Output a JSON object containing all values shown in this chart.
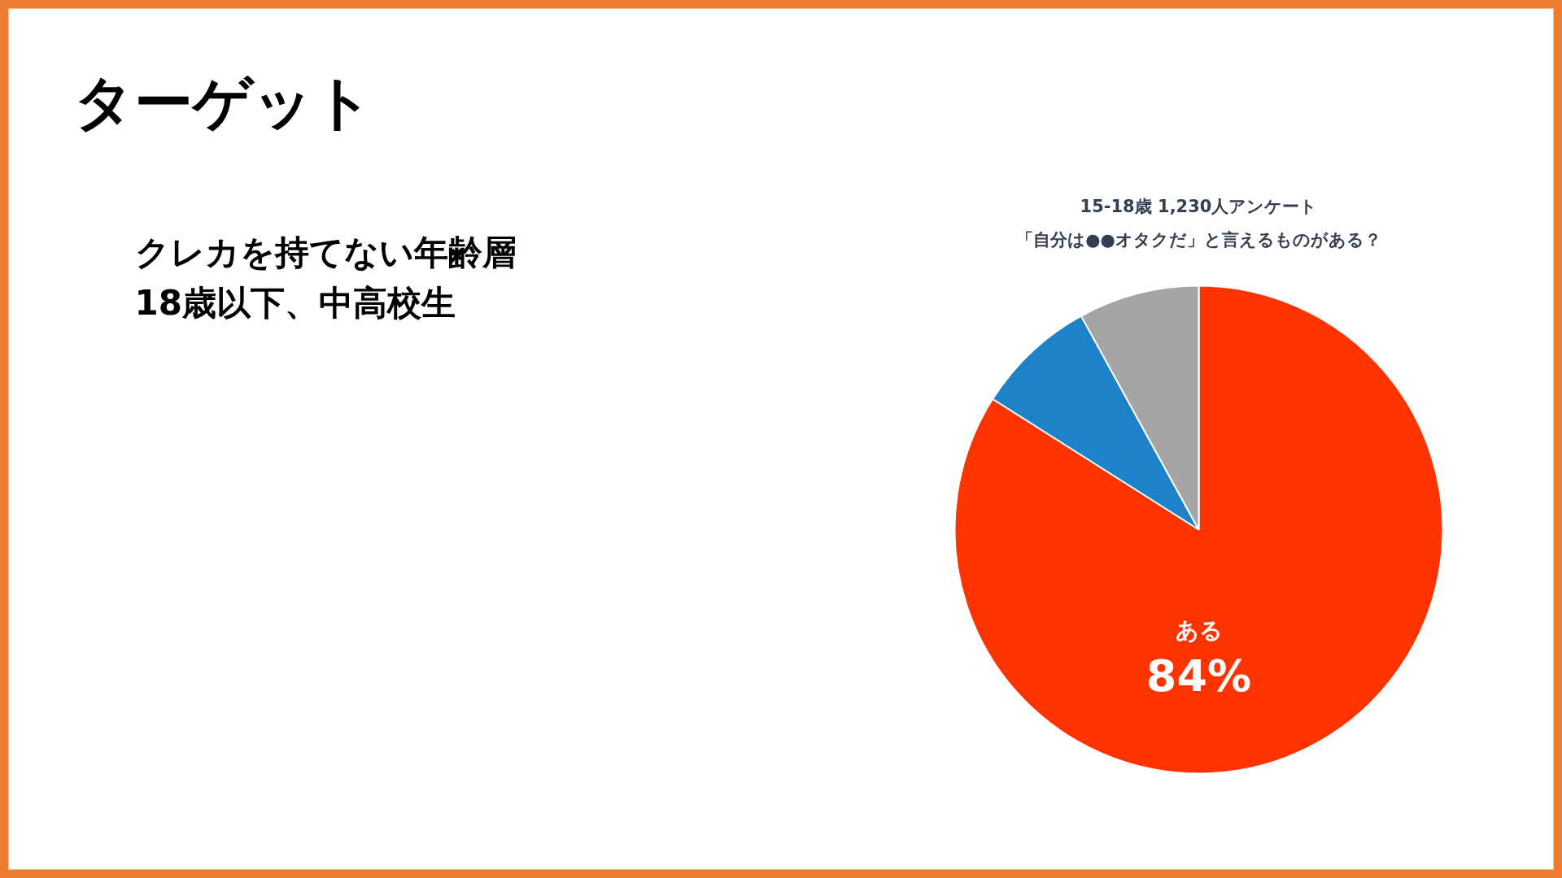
{
  "chart_data": {
    "type": "pie",
    "title": "15-18歳 1,230人アンケート",
    "subtitle": "「自分は●●オタクだ」と言えるものがある？",
    "categories": [
      "ある",
      null,
      null
    ],
    "values": [
      84,
      8,
      8
    ],
    "colors": [
      "#ff3300",
      "#1e82c8",
      "#a5a5a5"
    ],
    "value_labels": [
      "84%",
      null,
      null
    ],
    "annotations": [
      "ターゲット",
      "クレカを持てない年齢層",
      "18歳以下、中高校生"
    ]
  }
}
